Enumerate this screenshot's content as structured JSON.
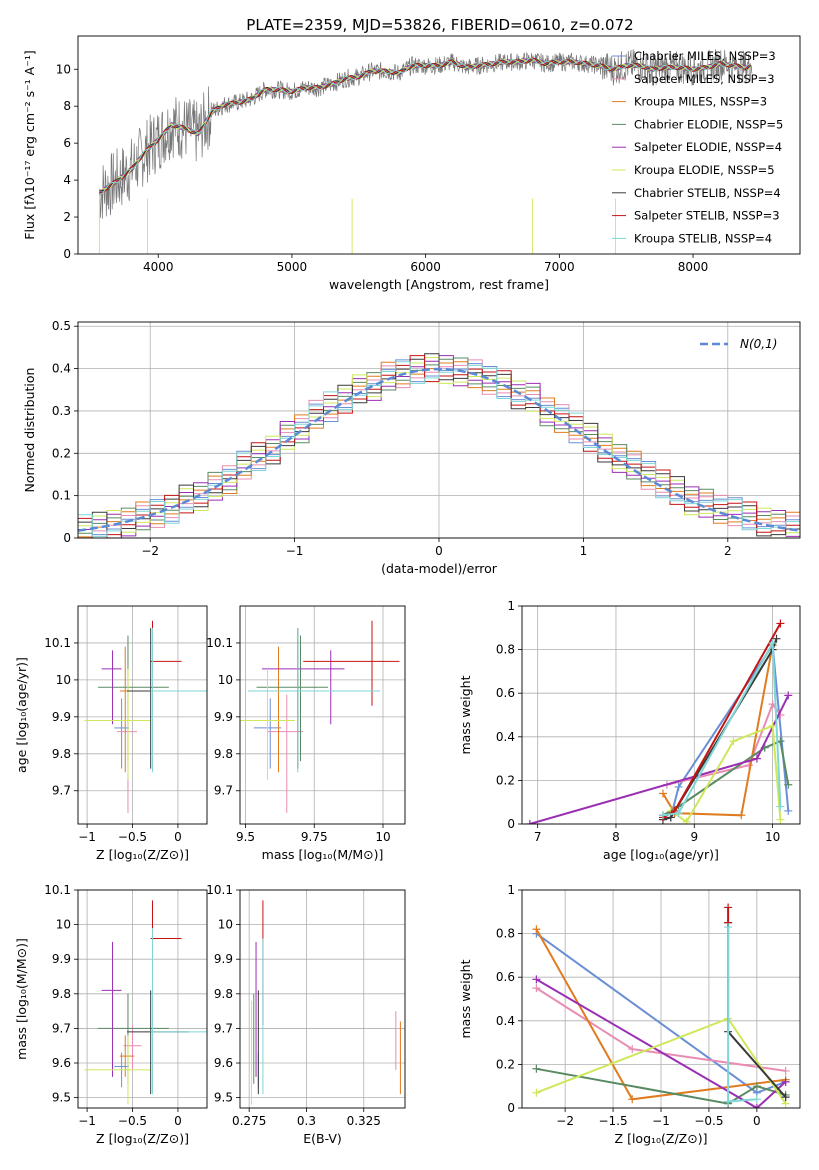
{
  "figure_title": "PLATE=2359, MJD=53826, FIBERID=0610, z=0.072",
  "series_names": [
    "Chabrier MILES, N$_{SSP}$=3",
    "Salpeter MILES, N$_{SSP}$=3",
    "Kroupa MILES, N$_{SSP}$=3",
    "Chabrier ELODIE, N$_{SSP}$=5",
    "Salpeter ELODIE, N$_{SSP}$=4",
    "Kroupa ELODIE, N$_{SSP}$=5",
    "Chabrier STELIB, N$_{SSP}$=4",
    "Salpeter STELIB, N$_{SSP}$=3",
    "Kroupa STELIB, N$_{SSP}$=4"
  ],
  "colors": [
    "#6b8fd6",
    "#e88cb4",
    "#e07b1f",
    "#5a8a63",
    "#9b2fb3",
    "#cde85a",
    "#3a3a3a",
    "#c41414",
    "#7fd6d6"
  ],
  "chart_data": [
    {
      "id": "spectrum",
      "type": "line",
      "xlabel": "wavelength [Angstrom, rest frame]",
      "ylabel": "Flux [f$_\\lambda$10$^{-17}$ erg cm$^{-2}$ s$^{-1}$ A$^{-1}$]",
      "xlim": [
        3400,
        8800
      ],
      "ylim": [
        0,
        11.8
      ],
      "xticks": [
        4000,
        5000,
        6000,
        7000,
        8000
      ],
      "yticks": [
        0,
        2,
        4,
        6,
        8,
        10
      ],
      "grid": false,
      "legend": "top-right",
      "data_color": "#777777",
      "data": {
        "x": [
          3560,
          3600,
          3700,
          3800,
          3900,
          4000,
          4100,
          4200,
          4300,
          4400,
          4500,
          4600,
          4700,
          4800,
          4900,
          5000,
          5100,
          5200,
          5300,
          5400,
          5500,
          5600,
          5700,
          5800,
          5900,
          6000,
          6100,
          6200,
          6300,
          6400,
          6500,
          6600,
          6700,
          6800,
          6900,
          7000,
          7100,
          7200,
          7300,
          7400,
          7500,
          7600,
          7700,
          7800,
          7900,
          8000,
          8100,
          8200,
          8300,
          8400,
          8440
        ],
        "y": [
          3.3,
          3.5,
          4.0,
          4.6,
          5.5,
          6.2,
          7.0,
          6.8,
          6.5,
          7.7,
          8.1,
          8.2,
          8.4,
          8.9,
          8.9,
          8.8,
          9.0,
          9.0,
          9.2,
          9.5,
          9.6,
          9.9,
          9.9,
          9.8,
          10.2,
          10.2,
          10.2,
          10.4,
          10.1,
          10.2,
          10.3,
          10.4,
          10.4,
          10.5,
          10.3,
          10.4,
          10.4,
          10.3,
          10.2,
          10.0,
          10.2,
          10.2,
          10.0,
          10.1,
          10.1,
          10.0,
          10.1,
          10.3,
          10.2,
          10.1,
          10.2
        ]
      },
      "model": {
        "x": [
          3560,
          3600,
          3700,
          3800,
          3900,
          4000,
          4100,
          4200,
          4300,
          4400,
          4500,
          4600,
          4700,
          4800,
          4900,
          5000,
          5100,
          5200,
          5300,
          5400,
          5500,
          5600,
          5700,
          5800,
          5900,
          6000,
          6100,
          6200,
          6300,
          6400,
          6500,
          6600,
          6700,
          6800,
          6900,
          7000,
          7100,
          7200,
          7300,
          7400,
          7500,
          7600,
          7700,
          7800,
          7900,
          8000,
          8100,
          8200,
          8300,
          8400,
          8440
        ],
        "y": [
          3.3,
          3.5,
          4.0,
          4.6,
          5.5,
          6.2,
          7.0,
          6.8,
          6.5,
          7.7,
          8.1,
          8.2,
          8.4,
          8.9,
          8.9,
          8.8,
          9.0,
          9.0,
          9.2,
          9.5,
          9.6,
          9.9,
          9.9,
          9.8,
          10.2,
          10.2,
          10.2,
          10.4,
          10.1,
          10.2,
          10.3,
          10.4,
          10.4,
          10.5,
          10.3,
          10.4,
          10.4,
          10.3,
          10.2,
          10.0,
          10.2,
          10.2,
          10.0,
          10.1,
          10.1,
          10.0,
          10.1,
          10.3,
          10.2,
          10.1,
          10.2
        ]
      }
    },
    {
      "id": "residuals",
      "type": "line",
      "xlabel": "(data-model)/error",
      "ylabel": "Normed distribution",
      "xlim": [
        -2.5,
        2.5
      ],
      "ylim": [
        0,
        0.51
      ],
      "xticks": [
        -2,
        -1,
        0,
        1,
        2
      ],
      "yticks": [
        0.0,
        0.1,
        0.2,
        0.3,
        0.4,
        0.5
      ],
      "grid": true,
      "legend": "top-right",
      "gauss_label": "$\\mathcal{N}(0,1)$",
      "gauss_color": "#5a8ad6",
      "bin_width": 0.1,
      "histogram": [
        0.02,
        0.03,
        0.03,
        0.04,
        0.05,
        0.06,
        0.07,
        0.09,
        0.1,
        0.12,
        0.14,
        0.17,
        0.19,
        0.21,
        0.24,
        0.26,
        0.29,
        0.31,
        0.33,
        0.35,
        0.36,
        0.38,
        0.39,
        0.4,
        0.4,
        0.4,
        0.39,
        0.39,
        0.37,
        0.36,
        0.34,
        0.33,
        0.3,
        0.28,
        0.26,
        0.24,
        0.21,
        0.19,
        0.17,
        0.15,
        0.13,
        0.11,
        0.09,
        0.08,
        0.07,
        0.06,
        0.05,
        0.04,
        0.03,
        0.03
      ]
    },
    {
      "id": "age-vs-Z",
      "type": "scatter",
      "xlabel": "Z [log$_{10}$(Z/Z$_\\odot$)]",
      "ylabel": "age  [log$_{10}$(age/yr)]",
      "xlim": [
        -1.1,
        0.32
      ],
      "ylim": [
        9.61,
        10.2
      ],
      "xticks": [
        -1.0,
        -0.5,
        0.0
      ],
      "yticks": [
        9.7,
        9.8,
        9.9,
        10.0,
        10.1
      ],
      "grid": true,
      "points": [
        {
          "x": -0.62,
          "y": 9.87,
          "xerr": [
            0.08,
            0.08
          ],
          "yerr": [
            0.11,
            0.08
          ]
        },
        {
          "x": -0.55,
          "y": 9.86,
          "xerr": [
            0.12,
            0.1
          ],
          "yerr": [
            0.22,
            0.1
          ]
        },
        {
          "x": -0.58,
          "y": 9.97,
          "xerr": [
            0.06,
            0.1
          ],
          "yerr": [
            0.22,
            0.12
          ]
        },
        {
          "x": -0.55,
          "y": 9.98,
          "xerr": [
            0.33,
            0.45
          ],
          "yerr": [
            0.2,
            0.14
          ]
        },
        {
          "x": -0.72,
          "y": 10.03,
          "xerr": [
            0.12,
            0.1
          ],
          "yerr": [
            0.15,
            0.05
          ]
        },
        {
          "x": -0.55,
          "y": 9.89,
          "xerr": [
            0.48,
            0.25
          ],
          "yerr": [
            0.16,
            0.14
          ]
        },
        {
          "x": -0.3,
          "y": 9.97,
          "xerr": [
            0.26,
            0.42
          ],
          "yerr": [
            0.21,
            0.17
          ]
        },
        {
          "x": -0.28,
          "y": 10.05,
          "xerr": [
            0.02,
            0.32
          ],
          "yerr": [
            0.12,
            0.11
          ]
        },
        {
          "x": -0.28,
          "y": 9.97,
          "xerr": [
            0.02,
            0.6
          ],
          "yerr": [
            0.22,
            0.17
          ]
        }
      ]
    },
    {
      "id": "age-vs-mass",
      "type": "scatter",
      "xlabel": "mass [log$_{10}$(M/M$_\\odot$)]",
      "ylabel": "",
      "xlim": [
        9.48,
        10.08
      ],
      "ylim": [
        9.61,
        10.2
      ],
      "xticks": [
        9.5,
        9.75,
        10.0
      ],
      "yticks": [
        9.7,
        9.8,
        9.9,
        10.0,
        10.1
      ],
      "grid": true,
      "points": [
        {
          "x": 9.59,
          "y": 9.87,
          "xerr": [
            0.06,
            0.04
          ],
          "yerr": [
            0.11,
            0.08
          ]
        },
        {
          "x": 9.65,
          "y": 9.86,
          "xerr": [
            0.07,
            0.06
          ],
          "yerr": [
            0.22,
            0.1
          ]
        },
        {
          "x": 9.62,
          "y": 9.97,
          "xerr": [
            0.06,
            0.06
          ],
          "yerr": [
            0.22,
            0.12
          ]
        },
        {
          "x": 9.7,
          "y": 9.98,
          "xerr": [
            0.16,
            0.1
          ],
          "yerr": [
            0.2,
            0.14
          ]
        },
        {
          "x": 9.81,
          "y": 10.03,
          "xerr": [
            0.25,
            0.05
          ],
          "yerr": [
            0.15,
            0.05
          ]
        },
        {
          "x": 9.58,
          "y": 9.89,
          "xerr": [
            0.1,
            0.1
          ],
          "yerr": [
            0.16,
            0.14
          ]
        },
        {
          "x": 9.69,
          "y": 9.97,
          "xerr": [
            0.18,
            0.12
          ],
          "yerr": [
            0.21,
            0.17
          ]
        },
        {
          "x": 9.96,
          "y": 10.05,
          "xerr": [
            0.25,
            0.1
          ],
          "yerr": [
            0.12,
            0.11
          ]
        },
        {
          "x": 9.69,
          "y": 9.97,
          "xerr": [
            0.18,
            0.3
          ],
          "yerr": [
            0.22,
            0.17
          ]
        }
      ]
    },
    {
      "id": "weight-vs-age",
      "type": "line",
      "xlabel": "age  [log$_{10}$(age/yr)]",
      "ylabel": "mass weight",
      "xlim": [
        6.8,
        10.35
      ],
      "ylim": [
        0,
        1.0
      ],
      "xticks": [
        7,
        8,
        9,
        10
      ],
      "yticks": [
        0.0,
        0.2,
        0.4,
        0.6,
        0.8,
        1.0
      ],
      "grid": true,
      "series": [
        {
          "x": [
            8.7,
            8.8,
            10.0,
            10.2
          ],
          "y": [
            0.03,
            0.17,
            0.82,
            0.06
          ]
        },
        {
          "x": [
            8.65,
            9.7,
            10.0,
            10.1
          ],
          "y": [
            0.18,
            0.27,
            0.55,
            0.5
          ]
        },
        {
          "x": [
            8.6,
            8.75,
            9.6,
            10.0
          ],
          "y": [
            0.14,
            0.05,
            0.04,
            0.82
          ]
        },
        {
          "x": [
            8.6,
            8.8,
            9.9,
            10.1,
            10.2
          ],
          "y": [
            0.04,
            0.08,
            0.35,
            0.38,
            0.18
          ]
        },
        {
          "x": [
            6.9,
            9.8,
            10.2
          ],
          "y": [
            0.0,
            0.3,
            0.59
          ]
        },
        {
          "x": [
            8.7,
            8.9,
            9.5,
            10.0,
            10.1
          ],
          "y": [
            0.06,
            0.01,
            0.38,
            0.45,
            0.02
          ]
        },
        {
          "x": [
            8.6,
            8.7,
            10.0,
            10.05
          ],
          "y": [
            0.02,
            0.03,
            0.8,
            0.85
          ]
        },
        {
          "x": [
            8.6,
            8.75,
            10.1
          ],
          "y": [
            0.03,
            0.06,
            0.92
          ]
        },
        {
          "x": [
            8.6,
            8.8,
            10.0,
            10.1
          ],
          "y": [
            0.04,
            0.05,
            0.83,
            0.08
          ]
        }
      ]
    },
    {
      "id": "mass-vs-Z",
      "type": "scatter",
      "xlabel": "Z [log$_{10}$(Z/Z$_\\odot$)]",
      "ylabel": "mass [log$_{10}$(M/M$_\\odot$)]",
      "xlim": [
        -1.1,
        0.32
      ],
      "ylim": [
        9.47,
        10.1
      ],
      "xticks": [
        -1.0,
        -0.5,
        0.0
      ],
      "yticks": [
        9.5,
        9.6,
        9.7,
        9.8,
        9.9,
        10.0,
        10.1
      ],
      "grid": true,
      "points": [
        {
          "x": -0.62,
          "y": 9.59,
          "xerr": [
            0.08,
            0.08
          ],
          "yerr": [
            0.06,
            0.04
          ]
        },
        {
          "x": -0.5,
          "y": 9.65,
          "xerr": [
            0.1,
            0.1
          ],
          "yerr": [
            0.07,
            0.06
          ]
        },
        {
          "x": -0.58,
          "y": 9.62,
          "xerr": [
            0.06,
            0.1
          ],
          "yerr": [
            0.06,
            0.06
          ]
        },
        {
          "x": -0.55,
          "y": 9.7,
          "xerr": [
            0.33,
            0.45
          ],
          "yerr": [
            0.16,
            0.1
          ]
        },
        {
          "x": -0.72,
          "y": 9.81,
          "xerr": [
            0.12,
            0.1
          ],
          "yerr": [
            0.25,
            0.14
          ]
        },
        {
          "x": -0.55,
          "y": 9.58,
          "xerr": [
            0.48,
            0.25
          ],
          "yerr": [
            0.1,
            0.1
          ]
        },
        {
          "x": -0.3,
          "y": 9.69,
          "xerr": [
            0.26,
            0.42
          ],
          "yerr": [
            0.18,
            0.12
          ]
        },
        {
          "x": -0.28,
          "y": 9.96,
          "xerr": [
            0.02,
            0.32
          ],
          "yerr": [
            0.25,
            0.11
          ]
        },
        {
          "x": -0.28,
          "y": 9.69,
          "xerr": [
            0.02,
            0.6
          ],
          "yerr": [
            0.18,
            0.3
          ]
        }
      ]
    },
    {
      "id": "mass-vs-ebv",
      "type": "scatter",
      "xlabel": "E(B-V)",
      "ylabel": "",
      "xlim": [
        0.271,
        0.343
      ],
      "ylim": [
        9.47,
        10.1
      ],
      "xticks": [
        0.275,
        0.3,
        0.325
      ],
      "yticks": [
        9.5,
        9.6,
        9.7,
        9.8,
        9.9,
        10.0,
        10.1
      ],
      "grid": true,
      "points": [
        {
          "x": 0.279,
          "y": 9.59,
          "xerr": [
            0,
            0
          ],
          "yerr": [
            0.06,
            0.04
          ]
        },
        {
          "x": 0.339,
          "y": 9.65,
          "xerr": [
            0,
            0
          ],
          "yerr": [
            0.07,
            0.1
          ]
        },
        {
          "x": 0.341,
          "y": 9.62,
          "xerr": [
            0,
            0
          ],
          "yerr": [
            0.11,
            0.1
          ]
        },
        {
          "x": 0.277,
          "y": 9.7,
          "xerr": [
            0,
            0
          ],
          "yerr": [
            0.16,
            0.1
          ]
        },
        {
          "x": 0.278,
          "y": 9.81,
          "xerr": [
            0,
            0
          ],
          "yerr": [
            0.25,
            0.14
          ]
        },
        {
          "x": 0.276,
          "y": 9.58,
          "xerr": [
            0,
            0
          ],
          "yerr": [
            0.1,
            0.2
          ]
        },
        {
          "x": 0.279,
          "y": 9.69,
          "xerr": [
            0,
            0
          ],
          "yerr": [
            0.18,
            0.12
          ]
        },
        {
          "x": 0.281,
          "y": 9.96,
          "xerr": [
            0,
            0
          ],
          "yerr": [
            0.25,
            0.11
          ]
        },
        {
          "x": 0.281,
          "y": 9.69,
          "xerr": [
            0,
            0
          ],
          "yerr": [
            0.18,
            0.27
          ]
        }
      ]
    },
    {
      "id": "weight-vs-Z",
      "type": "line",
      "xlabel": "Z [log$_{10}$(Z/Z$_\\odot$)]",
      "ylabel": "mass weight",
      "xlim": [
        -2.45,
        0.45
      ],
      "ylim": [
        0,
        1.0
      ],
      "xticks": [
        -2.0,
        -1.5,
        -1.0,
        -0.5,
        0.0
      ],
      "yticks": [
        0.0,
        0.2,
        0.4,
        0.6,
        0.8,
        1.0
      ],
      "grid": true,
      "series": [
        {
          "x": [
            -2.3,
            0.0,
            0.3
          ],
          "y": [
            0.8,
            0.07,
            0.12
          ]
        },
        {
          "x": [
            -2.3,
            -1.3,
            0.3
          ],
          "y": [
            0.55,
            0.27,
            0.17
          ]
        },
        {
          "x": [
            -2.3,
            -1.3,
            0.3
          ],
          "y": [
            0.82,
            0.04,
            0.13
          ]
        },
        {
          "x": [
            -2.3,
            -0.3,
            0.0,
            0.3
          ],
          "y": [
            0.18,
            0.02,
            0.1,
            0.06
          ]
        },
        {
          "x": [
            -2.3,
            -0.0,
            0.3
          ],
          "y": [
            0.59,
            0.0,
            0.12
          ]
        },
        {
          "x": [
            -2.3,
            -0.3,
            0.3
          ],
          "y": [
            0.07,
            0.41,
            0.02
          ]
        },
        {
          "x": [
            -0.3,
            -0.3,
            0.3
          ],
          "y": [
            0.85,
            0.35,
            0.05
          ]
        },
        {
          "x": [
            -0.3,
            -0.3
          ],
          "y": [
            0.92,
            0.85
          ]
        },
        {
          "x": [
            -0.3,
            -0.3,
            0.0
          ],
          "y": [
            0.83,
            0.03,
            0.04
          ]
        }
      ]
    }
  ]
}
